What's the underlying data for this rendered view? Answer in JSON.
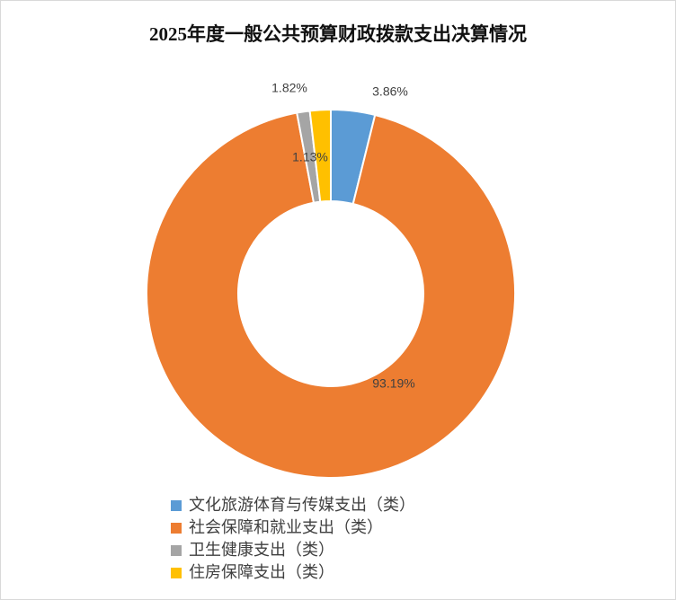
{
  "chart_data": {
    "type": "donut",
    "title": "2025年度一般公共预算财政拨款支出决算情况",
    "categories": [
      "文化旅游体育与传媒支出（类）",
      "社会保障和就业支出（类）",
      "卫生健康支出（类）",
      "住房保障支出（类）"
    ],
    "values": [
      3.86,
      93.19,
      1.13,
      1.82
    ],
    "value_labels": [
      "3.86%",
      "93.19%",
      "1.13%",
      "1.82%"
    ],
    "colors": [
      "#5b9bd5",
      "#ed7d31",
      "#a5a5a5",
      "#ffc000"
    ],
    "legend": "bottom"
  }
}
